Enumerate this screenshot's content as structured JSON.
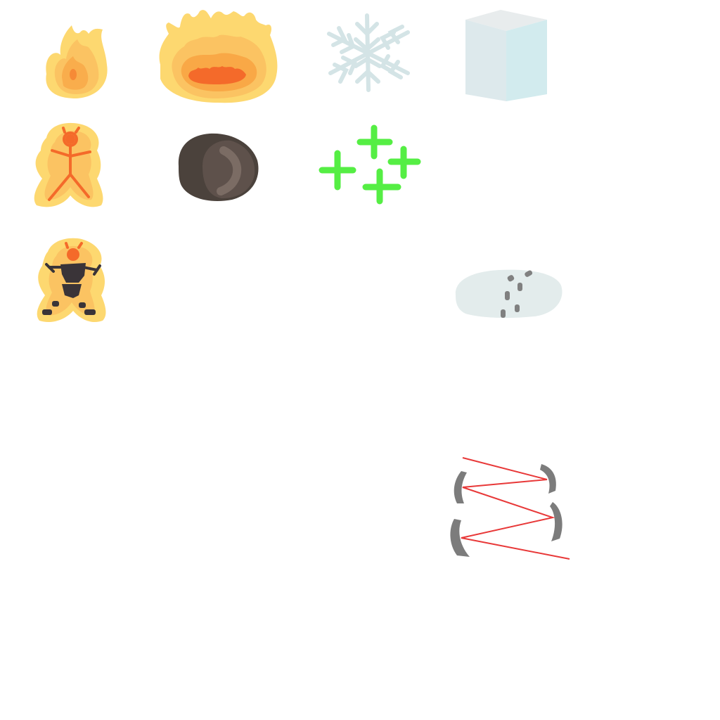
{
  "sprite_sheet": {
    "background_color": "#ffffff",
    "sprites": [
      {
        "name": "small-flame-sprite",
        "icon": "small-flame-icon"
      },
      {
        "name": "large-fire-sprite",
        "icon": "large-fire-icon"
      },
      {
        "name": "snowflake-sprite",
        "icon": "snowflake-icon"
      },
      {
        "name": "ice-cube-sprite",
        "icon": "ice-cube-icon"
      },
      {
        "name": "burning-stick-figure-sprite",
        "icon": "burning-figure-icon"
      },
      {
        "name": "boulder-sprite",
        "icon": "rock-icon"
      },
      {
        "name": "green-sparkles-sprite",
        "icon": "heal-sparkle-icon"
      },
      {
        "name": "burning-armored-figure-sprite",
        "icon": "burning-warrior-icon"
      },
      {
        "name": "footprints-in-snow-sprite",
        "icon": "footprints-icon"
      },
      {
        "name": "laser-mirror-bounce-sprite",
        "icon": "laser-mirrors-icon"
      }
    ],
    "colors": {
      "flame_outer": "#fdd870",
      "flame_mid": "#fbbf5c",
      "flame_inner": "#f89a3c",
      "flame_core": "#f46a2a",
      "ice_light": "#e6eef0",
      "ice_blue": "#d2ebee",
      "snowflake": "#d4e4e6",
      "rock_dark": "#4b423c",
      "rock_light": "#7b6c64",
      "sparkle_green": "#55ee44",
      "snow_mound": "#e3ecec",
      "footprint_gray": "#808080",
      "mirror_gray": "#7c7c7c",
      "laser_red": "#e83838",
      "armor_dark": "#3a3438"
    }
  }
}
